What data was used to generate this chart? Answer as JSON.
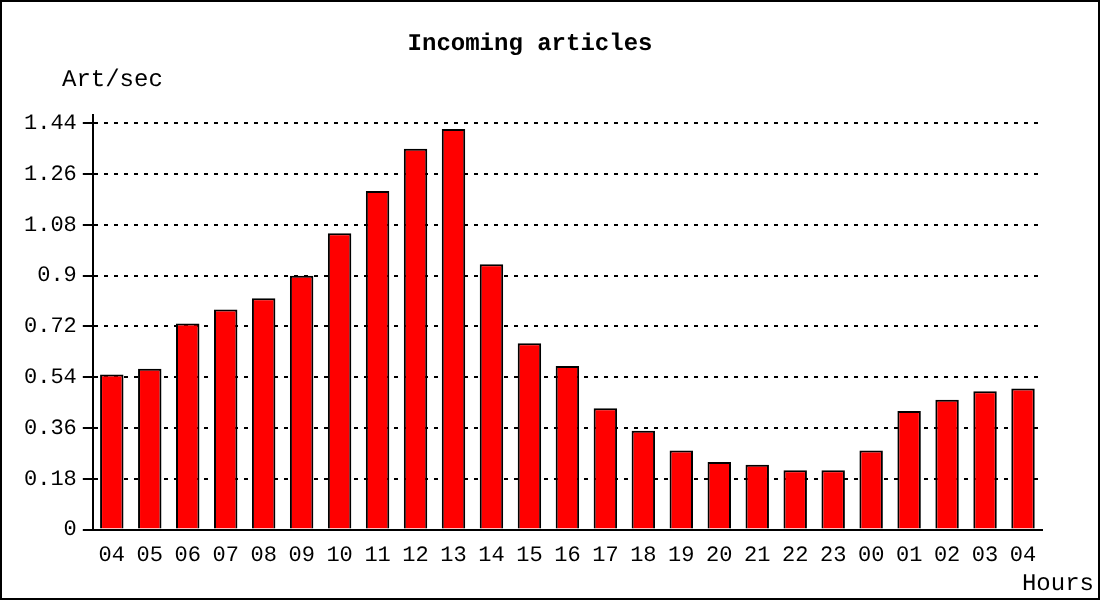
{
  "chart_data": {
    "type": "bar",
    "title": "Incoming articles",
    "xlabel": "Hours",
    "ylabel": "Art/sec",
    "categories": [
      "04",
      "05",
      "06",
      "07",
      "08",
      "09",
      "10",
      "11",
      "12",
      "13",
      "14",
      "15",
      "16",
      "17",
      "18",
      "19",
      "20",
      "21",
      "22",
      "23",
      "00",
      "01",
      "02",
      "03",
      "04"
    ],
    "values": [
      0.55,
      0.57,
      0.73,
      0.78,
      0.82,
      0.9,
      1.05,
      1.2,
      1.35,
      1.42,
      0.94,
      0.66,
      0.58,
      0.43,
      0.35,
      0.28,
      0.24,
      0.23,
      0.21,
      0.21,
      0.28,
      0.42,
      0.46,
      0.49,
      0.5
    ],
    "color": "#ff0000",
    "ylim": [
      0,
      1.47
    ],
    "yticks": [
      0,
      0.18,
      0.36,
      0.54,
      0.72,
      {
        "value": 0.9,
        "label": "0.9"
      },
      1.08,
      1.26,
      1.44
    ],
    "grid": "y",
    "legend": false
  }
}
